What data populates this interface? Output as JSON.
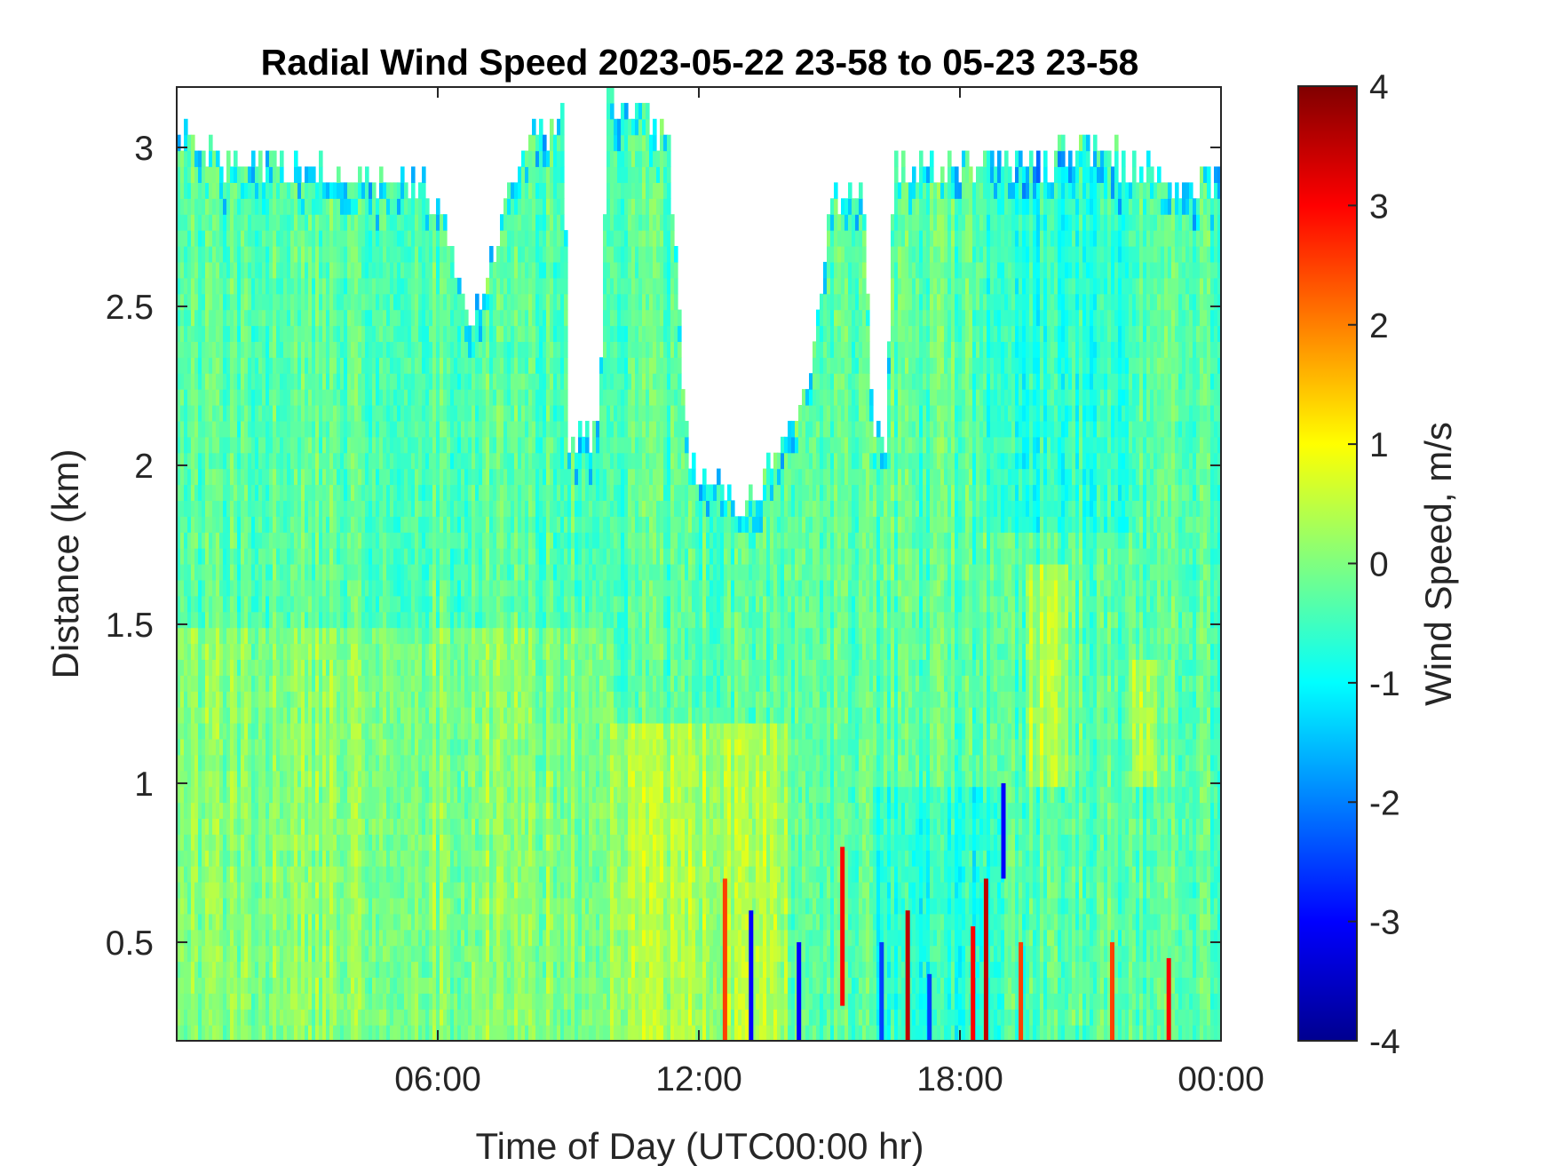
{
  "chart_data": {
    "type": "heatmap",
    "title": "Radial Wind Speed 2023-05-22 23-58 to 05-23 23-58",
    "xlabel": "Time of Day (UTC00:00 hr)",
    "ylabel": "Distance (km)",
    "colorbar_label": "Wind Speed, m/s",
    "x_hours_range": [
      0,
      24
    ],
    "x_ticks": [
      {
        "hour": 6,
        "label": "06:00"
      },
      {
        "hour": 12,
        "label": "12:00"
      },
      {
        "hour": 18,
        "label": "18:00"
      },
      {
        "hour": 24,
        "label": "00:00"
      }
    ],
    "ylim": [
      0.19,
      3.19
    ],
    "y_ticks": [
      {
        "value": 0.5,
        "label": "0.5"
      },
      {
        "value": 1,
        "label": "1"
      },
      {
        "value": 1.5,
        "label": "1.5"
      },
      {
        "value": 2,
        "label": "2"
      },
      {
        "value": 2.5,
        "label": "2.5"
      },
      {
        "value": 3,
        "label": "3"
      }
    ],
    "clim": [
      -4,
      4
    ],
    "colormap": "jet",
    "colorbar_ticks": [
      {
        "value": 4,
        "label": "4"
      },
      {
        "value": 3,
        "label": "3"
      },
      {
        "value": 2,
        "label": "2"
      },
      {
        "value": 1,
        "label": "1"
      },
      {
        "value": 0,
        "label": "0"
      },
      {
        "value": -1,
        "label": "-1"
      },
      {
        "value": -2,
        "label": "-2"
      },
      {
        "value": -3,
        "label": "-3"
      },
      {
        "value": -4,
        "label": "-4"
      }
    ],
    "data_ceiling_km": [
      {
        "hour": 0.0,
        "top": 3.05
      },
      {
        "hour": 1.0,
        "top": 2.95
      },
      {
        "hour": 2.5,
        "top": 2.95
      },
      {
        "hour": 4.0,
        "top": 2.9
      },
      {
        "hour": 5.5,
        "top": 2.9
      },
      {
        "hour": 6.3,
        "top": 2.75
      },
      {
        "hour": 6.6,
        "top": 2.5
      },
      {
        "hour": 7.0,
        "top": 2.5
      },
      {
        "hour": 7.6,
        "top": 2.9
      },
      {
        "hour": 8.2,
        "top": 3.05
      },
      {
        "hour": 8.9,
        "top": 3.1
      },
      {
        "hour": 9.0,
        "top": 2.1
      },
      {
        "hour": 9.7,
        "top": 2.08
      },
      {
        "hour": 9.9,
        "top": 3.15
      },
      {
        "hour": 10.5,
        "top": 3.1
      },
      {
        "hour": 11.3,
        "top": 3.05
      },
      {
        "hour": 11.7,
        "top": 2.1
      },
      {
        "hour": 12.0,
        "top": 1.95
      },
      {
        "hour": 12.5,
        "top": 1.95
      },
      {
        "hour": 12.9,
        "top": 1.85
      },
      {
        "hour": 13.4,
        "top": 1.95
      },
      {
        "hour": 14.0,
        "top": 2.05
      },
      {
        "hour": 14.6,
        "top": 2.3
      },
      {
        "hour": 15.0,
        "top": 2.85
      },
      {
        "hour": 15.8,
        "top": 2.85
      },
      {
        "hour": 16.0,
        "top": 2.05
      },
      {
        "hour": 16.3,
        "top": 2.1
      },
      {
        "hour": 16.5,
        "top": 2.95
      },
      {
        "hour": 18.0,
        "top": 2.95
      },
      {
        "hour": 20.0,
        "top": 2.95
      },
      {
        "hour": 21.0,
        "top": 3.0
      },
      {
        "hour": 22.0,
        "top": 2.95
      },
      {
        "hour": 23.0,
        "top": 2.9
      },
      {
        "hour": 24.0,
        "top": 2.9
      }
    ],
    "wind_pattern": [
      {
        "hours": [
          0,
          24
        ],
        "km": [
          0.19,
          3.19
        ],
        "speed": -0.3,
        "note_shown": false
      },
      {
        "hours": [
          0,
          10
        ],
        "km": [
          0.19,
          1.5
        ],
        "speed": 0.3
      },
      {
        "hours": [
          10,
          14
        ],
        "km": [
          0.19,
          1.2
        ],
        "speed": 0.8
      },
      {
        "hours": [
          16,
          19
        ],
        "km": [
          0.19,
          1.0
        ],
        "speed": -1.0
      },
      {
        "hours": [
          18.5,
          22
        ],
        "km": [
          1.8,
          3.0
        ],
        "speed": -0.9
      },
      {
        "hours": [
          19.5,
          20.5
        ],
        "km": [
          1.0,
          1.7
        ],
        "speed": 0.8
      },
      {
        "hours": [
          22.0,
          22.5
        ],
        "km": [
          1.0,
          1.4
        ],
        "speed": 0.9
      }
    ],
    "streaks": [
      {
        "hour": 12.6,
        "km": [
          0.19,
          0.7
        ],
        "speed": 2.5
      },
      {
        "hour": 13.2,
        "km": [
          0.19,
          0.6
        ],
        "speed": -3.0
      },
      {
        "hour": 14.3,
        "km": [
          0.19,
          0.5
        ],
        "speed": -3.0
      },
      {
        "hour": 15.3,
        "km": [
          0.3,
          0.8
        ],
        "speed": 3.0
      },
      {
        "hour": 16.2,
        "km": [
          0.19,
          0.5
        ],
        "speed": -2.5
      },
      {
        "hour": 16.8,
        "km": [
          0.19,
          0.6
        ],
        "speed": 3.5
      },
      {
        "hour": 17.3,
        "km": [
          0.19,
          0.4
        ],
        "speed": -2.5
      },
      {
        "hour": 18.3,
        "km": [
          0.19,
          0.55
        ],
        "speed": 3.0
      },
      {
        "hour": 18.6,
        "km": [
          0.19,
          0.7
        ],
        "speed": 3.5
      },
      {
        "hour": 19.0,
        "km": [
          0.7,
          1.0
        ],
        "speed": -3.0
      },
      {
        "hour": 19.4,
        "km": [
          0.19,
          0.5
        ],
        "speed": 2.5
      },
      {
        "hour": 21.5,
        "km": [
          0.19,
          0.5
        ],
        "speed": 2.5
      },
      {
        "hour": 22.8,
        "km": [
          0.19,
          0.45
        ],
        "speed": 3.0
      }
    ]
  }
}
